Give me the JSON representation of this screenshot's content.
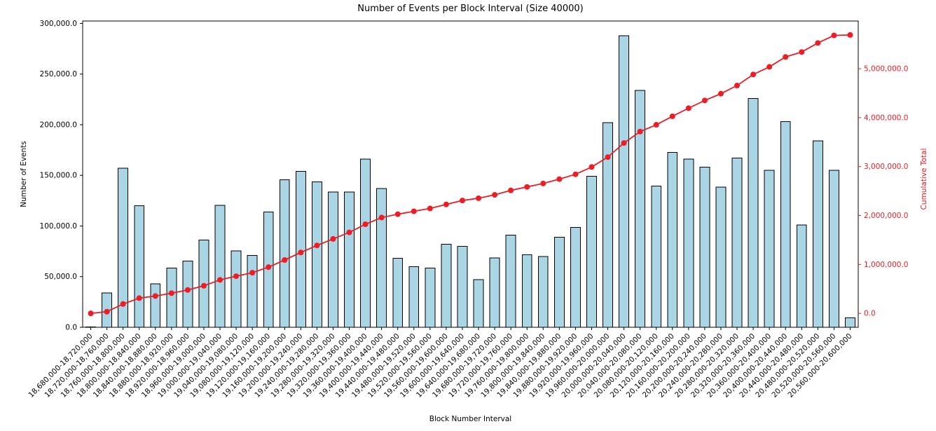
{
  "chart_data": {
    "type": "bar",
    "title": "Number of Events per Block Interval (Size 40000)",
    "xlabel": "Block Number Interval",
    "ylabel": "Number of Events",
    "ylabel_right": "Cumulative Total",
    "grid": false,
    "legend": "none",
    "ylim_left": [
      0,
      302400
    ],
    "ylim_right": [
      -284000,
      5975000
    ],
    "left_ticks": {
      "values": [
        0,
        50000,
        100000,
        150000,
        200000,
        250000,
        300000
      ],
      "labels": [
        "0.0",
        "50,000.0",
        "100,000.0",
        "150,000.0",
        "200,000.0",
        "250,000.0",
        "300,000.0"
      ]
    },
    "right_ticks": {
      "values": [
        0,
        1000000,
        2000000,
        3000000,
        4000000,
        5000000
      ],
      "labels": [
        "0.0",
        "1,000,000.0",
        "2,000,000.0",
        "3,000,000.0",
        "4,000,000.0",
        "5,000,000.0"
      ]
    },
    "categories": [
      "18,680,000-18,720,000",
      "18,720,000-18,760,000",
      "18,760,000-18,800,000",
      "18,800,000-18,840,000",
      "18,840,000-18,880,000",
      "18,880,000-18,920,000",
      "18,920,000-18,960,000",
      "18,960,000-19,000,000",
      "19,000,000-19,040,000",
      "19,040,000-19,080,000",
      "19,080,000-19,120,000",
      "19,120,000-19,160,000",
      "19,160,000-19,200,000",
      "19,200,000-19,240,000",
      "19,240,000-19,280,000",
      "19,280,000-19,320,000",
      "19,320,000-19,360,000",
      "19,360,000-19,400,000",
      "19,400,000-19,440,000",
      "19,440,000-19,480,000",
      "19,480,000-19,520,000",
      "19,520,000-19,560,000",
      "19,560,000-19,600,000",
      "19,600,000-19,640,000",
      "19,640,000-19,680,000",
      "19,680,000-19,720,000",
      "19,720,000-19,760,000",
      "19,760,000-19,800,000",
      "19,800,000-19,840,000",
      "19,840,000-19,880,000",
      "19,880,000-19,920,000",
      "19,920,000-19,960,000",
      "19,960,000-20,000,000",
      "20,000,000-20,040,000",
      "20,040,000-20,080,000",
      "20,080,000-20,120,000",
      "20,120,000-20,160,000",
      "20,160,000-20,200,000",
      "20,200,000-20,240,000",
      "20,240,000-20,280,000",
      "20,280,000-20,320,000",
      "20,320,000-20,360,000",
      "20,360,000-20,400,000",
      "20,400,000-20,440,000",
      "20,440,000-20,480,000",
      "20,480,000-20,520,000",
      "20,520,000-20,560,000",
      "20,560,000-20,600,000"
    ],
    "series": [
      {
        "name": "Number of Events",
        "type": "bar",
        "yaxis": "left",
        "values": [
          500,
          34000,
          157000,
          120000,
          43000,
          58500,
          65500,
          86000,
          120500,
          75500,
          71000,
          114000,
          145500,
          154000,
          143500,
          133500,
          133500,
          166000,
          137000,
          68000,
          60000,
          58500,
          82000,
          80000,
          47000,
          68500,
          91000,
          71500,
          70000,
          89000,
          98500,
          149000,
          202000,
          288000,
          234000,
          139500,
          172500,
          166000,
          158000,
          138500,
          167000,
          226000,
          155000,
          203000,
          101000,
          184000,
          155000,
          9500
        ]
      },
      {
        "name": "Cumulative Total",
        "type": "line",
        "yaxis": "right",
        "marker": "circle",
        "values": [
          500,
          34500,
          191500,
          311500,
          354500,
          413000,
          478500,
          564500,
          685000,
          760500,
          831500,
          945500,
          1091000,
          1245000,
          1388500,
          1522000,
          1655500,
          1821500,
          1958500,
          2026500,
          2086500,
          2145000,
          2227000,
          2307000,
          2354000,
          2422500,
          2513500,
          2585000,
          2655000,
          2744000,
          2842500,
          2991500,
          3193500,
          3481500,
          3715500,
          3855000,
          4027500,
          4193500,
          4351500,
          4490000,
          4657000,
          4883000,
          5038000,
          5241000,
          5342000,
          5526000,
          5681000,
          5690500
        ]
      }
    ],
    "colors": {
      "bar_fill": "#a9d5e5",
      "bar_edge": "#000000",
      "line": "#ee1c25",
      "axis": "#000000",
      "left_tick_text": "#000000",
      "right_tick_text": "#ee1c25",
      "background": "#ffffff"
    }
  }
}
